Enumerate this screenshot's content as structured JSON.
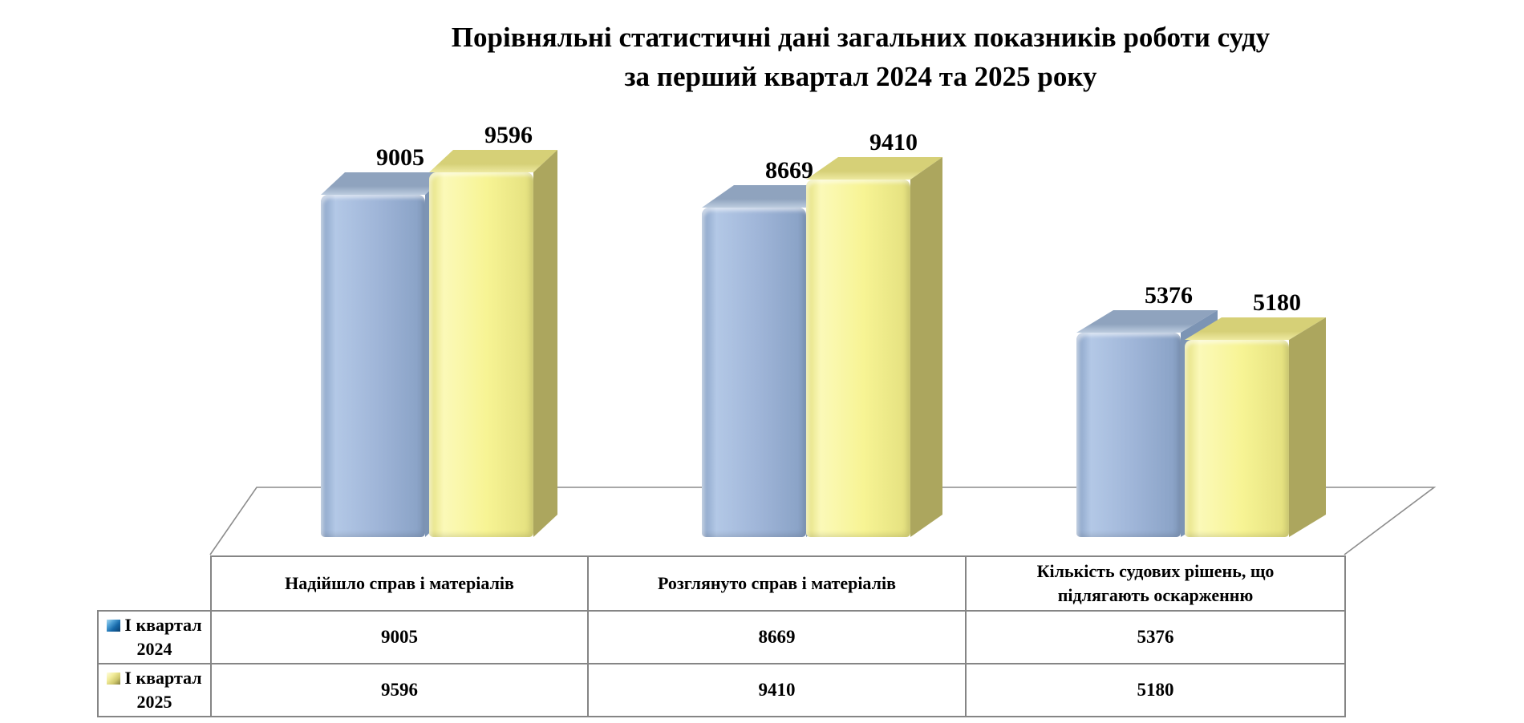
{
  "title": {
    "line1": "Порівняльні статистичні дані загальних показників роботи суду",
    "line2": "за перший квартал 2024 та 2025 року"
  },
  "chart_data": {
    "type": "bar",
    "style": "3d-clustered-column-with-data-table",
    "title": "Порівняльні статистичні дані загальних показників роботи суду за перший квартал 2024 та 2025 року",
    "categories": [
      "Надійшло справ і матеріалів",
      "Розглянуто справ і матеріалів",
      "Кількість судових рішень, що підлягають оскарженню"
    ],
    "series": [
      {
        "name": "І квартал 2024",
        "values": [
          9005,
          8669,
          5376
        ],
        "color": "#9FB5D8"
      },
      {
        "name": "І квартал 2025",
        "values": [
          9596,
          9410,
          5180
        ],
        "color": "#F7F494"
      }
    ],
    "data_labels": [
      "9005",
      "9596",
      "8669",
      "9410",
      "5376",
      "5180"
    ],
    "value_axis_visible": false,
    "grid": false,
    "legend_position": "data-table-left"
  },
  "table": {
    "headers": [
      {
        "lines": [
          "Надійшло справ і матеріалів"
        ]
      },
      {
        "lines": [
          "Розглянуто справ і матеріалів"
        ]
      },
      {
        "lines": [
          "Кількість судових рішень, що",
          "підлягають оскарженню"
        ]
      }
    ],
    "rows": [
      {
        "legend_line1": "І квартал",
        "legend_line2": "2024",
        "values": [
          "9005",
          "8669",
          "5376"
        ]
      },
      {
        "legend_line1": "І квартал",
        "legend_line2": "2025",
        "values": [
          "9596",
          "9410",
          "5180"
        ]
      }
    ]
  },
  "colors": {
    "series1_front": "#9FB5D8",
    "series1_front_hi": "#B3C8E6",
    "series1_front_dk": "#87A0C4",
    "series1_top": "#8FA3BE",
    "series1_top_hi": "#BCCCDF",
    "series1_side": "#7C94B4",
    "series2_front": "#F7F494",
    "series2_front_hi": "#FBF9B8",
    "series2_front_dk": "#E3DF7E",
    "series2_top": "#D6D077",
    "series2_top_hi": "#EDE9A0",
    "series2_side": "#ACA65E",
    "marker1": "#1E6FB4",
    "marker2": "#EFE98C",
    "line": "#8C8C8C",
    "table_border": "#858585",
    "text": "#000000"
  }
}
